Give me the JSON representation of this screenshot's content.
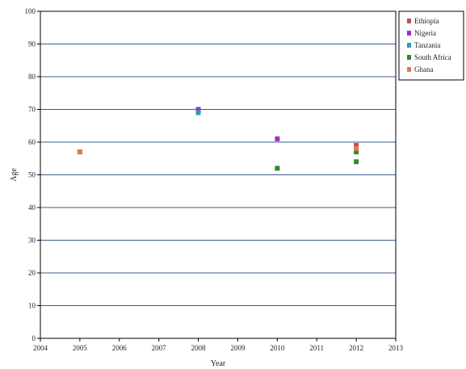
{
  "chart_data": {
    "type": "scatter",
    "title": "",
    "xlabel": "Year",
    "ylabel": "Age",
    "xlim": [
      2004,
      2013
    ],
    "ylim": [
      0,
      100
    ],
    "x_ticks": [
      "2004",
      "2005",
      "2006",
      "2007",
      "2008",
      "2009",
      "2010",
      "2011",
      "2012",
      "2013"
    ],
    "y_ticks": [
      "0",
      "10",
      "20",
      "30",
      "40",
      "50",
      "60",
      "70",
      "80",
      "90",
      "100"
    ],
    "grid": "horizontal",
    "legend_position": "top-right",
    "series": [
      {
        "name": "Ethiopia",
        "color": "#c0504d",
        "points": [
          {
            "x": 2005,
            "y": 57
          },
          {
            "x": 2012,
            "y": 59
          }
        ]
      },
      {
        "name": "Nigeria",
        "color": "#9933cc",
        "points": [
          {
            "x": 2008,
            "y": 70
          },
          {
            "x": 2010,
            "y": 61
          }
        ]
      },
      {
        "name": "Tanzania",
        "color": "#2a9db5",
        "points": [
          {
            "x": 2008,
            "y": 69
          }
        ]
      },
      {
        "name": "South Africa",
        "color": "#2e8b2e",
        "points": [
          {
            "x": 2010,
            "y": 52
          },
          {
            "x": 2012,
            "y": 57
          },
          {
            "x": 2012,
            "y": 54
          }
        ]
      },
      {
        "name": "Ghana",
        "color": "#e07a4f",
        "points": [
          {
            "x": 2005,
            "y": 57
          },
          {
            "x": 2012,
            "y": 58
          }
        ]
      }
    ]
  }
}
